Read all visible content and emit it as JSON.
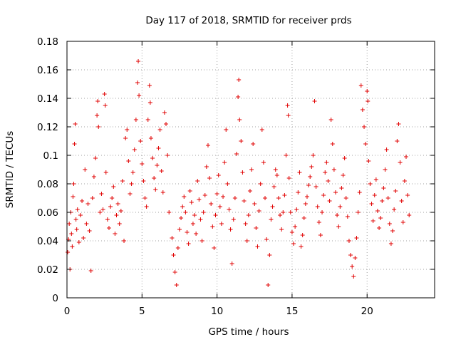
{
  "chart_data": {
    "type": "scatter",
    "title": "Day 117 of 2018, SRMTID for receiver prds",
    "xlabel": "GPS time / hours",
    "ylabel": "SRMTID / TECUs",
    "xlim": [
      0,
      24.5
    ],
    "ylim": [
      0,
      0.18
    ],
    "x_ticks": [
      0,
      5,
      10,
      15,
      20
    ],
    "x_tick_labels": [
      "0",
      "5",
      "10",
      "15",
      "20"
    ],
    "y_ticks": [
      0,
      0.02,
      0.04,
      0.06,
      0.08,
      0.1,
      0.12,
      0.14,
      0.16,
      0.18
    ],
    "y_tick_labels": [
      "0",
      "0.02",
      "0.04",
      "0.06",
      "0.08",
      "0.1",
      "0.12",
      "0.14",
      "0.16",
      "0.18"
    ],
    "grid": true,
    "marker": "+",
    "color": "#e00000",
    "series": [
      {
        "name": "SRMTID",
        "points": [
          [
            0.05,
            0.032
          ],
          [
            0.1,
            0.041
          ],
          [
            0.15,
            0.052
          ],
          [
            0.2,
            0.02
          ],
          [
            0.25,
            0.06
          ],
          [
            0.3,
            0.045
          ],
          [
            0.35,
            0.036
          ],
          [
            0.4,
            0.071
          ],
          [
            0.45,
            0.08
          ],
          [
            0.5,
            0.108
          ],
          [
            0.55,
            0.122
          ],
          [
            0.6,
            0.055
          ],
          [
            0.65,
            0.048
          ],
          [
            0.7,
            0.062
          ],
          [
            0.8,
            0.039
          ],
          [
            0.9,
            0.058
          ],
          [
            1.0,
            0.068
          ],
          [
            1.1,
            0.042
          ],
          [
            1.2,
            0.09
          ],
          [
            1.3,
            0.052
          ],
          [
            1.4,
            0.066
          ],
          [
            1.5,
            0.047
          ],
          [
            1.6,
            0.019
          ],
          [
            1.7,
            0.07
          ],
          [
            1.8,
            0.085
          ],
          [
            1.9,
            0.098
          ],
          [
            2.0,
            0.128
          ],
          [
            2.05,
            0.138
          ],
          [
            2.1,
            0.12
          ],
          [
            2.2,
            0.06
          ],
          [
            2.3,
            0.073
          ],
          [
            2.4,
            0.062
          ],
          [
            2.5,
            0.143
          ],
          [
            2.55,
            0.135
          ],
          [
            2.6,
            0.088
          ],
          [
            2.7,
            0.055
          ],
          [
            2.8,
            0.049
          ],
          [
            2.9,
            0.064
          ],
          [
            3.0,
            0.07
          ],
          [
            3.1,
            0.078
          ],
          [
            3.2,
            0.045
          ],
          [
            3.3,
            0.058
          ],
          [
            3.4,
            0.066
          ],
          [
            3.5,
            0.052
          ],
          [
            3.6,
            0.061
          ],
          [
            3.7,
            0.082
          ],
          [
            3.8,
            0.04
          ],
          [
            3.9,
            0.112
          ],
          [
            4.0,
            0.118
          ],
          [
            4.1,
            0.096
          ],
          [
            4.2,
            0.073
          ],
          [
            4.3,
            0.08
          ],
          [
            4.4,
            0.088
          ],
          [
            4.5,
            0.104
          ],
          [
            4.6,
            0.125
          ],
          [
            4.7,
            0.151
          ],
          [
            4.75,
            0.166
          ],
          [
            4.8,
            0.142
          ],
          [
            4.9,
            0.11
          ],
          [
            5.0,
            0.094
          ],
          [
            5.1,
            0.082
          ],
          [
            5.2,
            0.07
          ],
          [
            5.3,
            0.064
          ],
          [
            5.4,
            0.125
          ],
          [
            5.5,
            0.149
          ],
          [
            5.55,
            0.137
          ],
          [
            5.6,
            0.112
          ],
          [
            5.7,
            0.098
          ],
          [
            5.8,
            0.084
          ],
          [
            5.9,
            0.076
          ],
          [
            6.0,
            0.093
          ],
          [
            6.1,
            0.105
          ],
          [
            6.2,
            0.118
          ],
          [
            6.3,
            0.089
          ],
          [
            6.4,
            0.074
          ],
          [
            6.5,
            0.13
          ],
          [
            6.6,
            0.122
          ],
          [
            6.7,
            0.1
          ],
          [
            6.8,
            0.06
          ],
          [
            7.0,
            0.042
          ],
          [
            7.1,
            0.03
          ],
          [
            7.2,
            0.018
          ],
          [
            7.3,
            0.009
          ],
          [
            7.4,
            0.035
          ],
          [
            7.5,
            0.048
          ],
          [
            7.6,
            0.056
          ],
          [
            7.7,
            0.064
          ],
          [
            7.8,
            0.071
          ],
          [
            7.9,
            0.06
          ],
          [
            8.0,
            0.046
          ],
          [
            8.1,
            0.038
          ],
          [
            8.2,
            0.075
          ],
          [
            8.3,
            0.067
          ],
          [
            8.4,
            0.052
          ],
          [
            8.5,
            0.058
          ],
          [
            8.6,
            0.045
          ],
          [
            8.7,
            0.082
          ],
          [
            8.8,
            0.069
          ],
          [
            8.9,
            0.055
          ],
          [
            9.0,
            0.04
          ],
          [
            9.1,
            0.06
          ],
          [
            9.2,
            0.072
          ],
          [
            9.3,
            0.092
          ],
          [
            9.4,
            0.107
          ],
          [
            9.5,
            0.084
          ],
          [
            9.6,
            0.066
          ],
          [
            9.7,
            0.05
          ],
          [
            9.8,
            0.035
          ],
          [
            9.9,
            0.058
          ],
          [
            10.0,
            0.073
          ],
          [
            10.1,
            0.086
          ],
          [
            10.2,
            0.064
          ],
          [
            10.3,
            0.052
          ],
          [
            10.4,
            0.071
          ],
          [
            10.5,
            0.095
          ],
          [
            10.6,
            0.118
          ],
          [
            10.7,
            0.08
          ],
          [
            10.8,
            0.062
          ],
          [
            10.9,
            0.048
          ],
          [
            11.0,
            0.024
          ],
          [
            11.1,
            0.055
          ],
          [
            11.2,
            0.07
          ],
          [
            11.3,
            0.101
          ],
          [
            11.4,
            0.141
          ],
          [
            11.45,
            0.153
          ],
          [
            11.5,
            0.125
          ],
          [
            11.6,
            0.11
          ],
          [
            11.7,
            0.088
          ],
          [
            11.8,
            0.068
          ],
          [
            11.9,
            0.052
          ],
          [
            12.0,
            0.04
          ],
          [
            12.1,
            0.058
          ],
          [
            12.2,
            0.075
          ],
          [
            12.3,
            0.09
          ],
          [
            12.4,
            0.108
          ],
          [
            12.5,
            0.066
          ],
          [
            12.6,
            0.049
          ],
          [
            12.7,
            0.036
          ],
          [
            12.8,
            0.061
          ],
          [
            12.9,
            0.08
          ],
          [
            13.0,
            0.118
          ],
          [
            13.1,
            0.095
          ],
          [
            13.2,
            0.07
          ],
          [
            13.3,
            0.041
          ],
          [
            13.4,
            0.009
          ],
          [
            13.5,
            0.03
          ],
          [
            13.6,
            0.055
          ],
          [
            13.7,
            0.064
          ],
          [
            13.8,
            0.078
          ],
          [
            13.9,
            0.09
          ],
          [
            14.0,
            0.086
          ],
          [
            14.1,
            0.07
          ],
          [
            14.2,
            0.058
          ],
          [
            14.3,
            0.048
          ],
          [
            14.4,
            0.06
          ],
          [
            14.5,
            0.072
          ],
          [
            14.6,
            0.1
          ],
          [
            14.7,
            0.135
          ],
          [
            14.75,
            0.128
          ],
          [
            14.8,
            0.084
          ],
          [
            14.9,
            0.06
          ],
          [
            15.0,
            0.046
          ],
          [
            15.1,
            0.038
          ],
          [
            15.2,
            0.05
          ],
          [
            15.3,
            0.062
          ],
          [
            15.4,
            0.074
          ],
          [
            15.5,
            0.088
          ],
          [
            15.6,
            0.036
          ],
          [
            15.7,
            0.044
          ],
          [
            15.8,
            0.056
          ],
          [
            15.9,
            0.066
          ],
          [
            16.0,
            0.071
          ],
          [
            16.1,
            0.079
          ],
          [
            16.2,
            0.085
          ],
          [
            16.3,
            0.092
          ],
          [
            16.4,
            0.1
          ],
          [
            16.5,
            0.138
          ],
          [
            16.6,
            0.078
          ],
          [
            16.7,
            0.064
          ],
          [
            16.8,
            0.053
          ],
          [
            16.9,
            0.044
          ],
          [
            17.0,
            0.06
          ],
          [
            17.1,
            0.072
          ],
          [
            17.2,
            0.088
          ],
          [
            17.3,
            0.095
          ],
          [
            17.4,
            0.082
          ],
          [
            17.5,
            0.068
          ],
          [
            17.6,
            0.125
          ],
          [
            17.7,
            0.108
          ],
          [
            17.8,
            0.09
          ],
          [
            17.9,
            0.074
          ],
          [
            18.0,
            0.058
          ],
          [
            18.1,
            0.05
          ],
          [
            18.2,
            0.064
          ],
          [
            18.3,
            0.077
          ],
          [
            18.4,
            0.086
          ],
          [
            18.5,
            0.098
          ],
          [
            18.6,
            0.07
          ],
          [
            18.7,
            0.057
          ],
          [
            18.8,
            0.04
          ],
          [
            18.9,
            0.03
          ],
          [
            19.0,
            0.022
          ],
          [
            19.1,
            0.015
          ],
          [
            19.2,
            0.028
          ],
          [
            19.3,
            0.042
          ],
          [
            19.4,
            0.06
          ],
          [
            19.5,
            0.074
          ],
          [
            19.6,
            0.149
          ],
          [
            19.7,
            0.132
          ],
          [
            19.8,
            0.12
          ],
          [
            19.9,
            0.108
          ],
          [
            20.0,
            0.145
          ],
          [
            20.05,
            0.138
          ],
          [
            20.1,
            0.096
          ],
          [
            20.2,
            0.08
          ],
          [
            20.3,
            0.066
          ],
          [
            20.4,
            0.054
          ],
          [
            20.5,
            0.072
          ],
          [
            20.6,
            0.083
          ],
          [
            20.7,
            0.061
          ],
          [
            20.8,
            0.049
          ],
          [
            20.9,
            0.056
          ],
          [
            21.0,
            0.068
          ],
          [
            21.1,
            0.077
          ],
          [
            21.2,
            0.09
          ],
          [
            21.3,
            0.104
          ],
          [
            21.4,
            0.07
          ],
          [
            21.5,
            0.052
          ],
          [
            21.6,
            0.038
          ],
          [
            21.7,
            0.047
          ],
          [
            21.8,
            0.062
          ],
          [
            21.9,
            0.075
          ],
          [
            22.0,
            0.11
          ],
          [
            22.1,
            0.122
          ],
          [
            22.2,
            0.095
          ],
          [
            22.3,
            0.068
          ],
          [
            22.4,
            0.053
          ],
          [
            22.5,
            0.082
          ],
          [
            22.6,
            0.099
          ],
          [
            22.7,
            0.072
          ],
          [
            22.8,
            0.058
          ]
        ]
      }
    ]
  }
}
